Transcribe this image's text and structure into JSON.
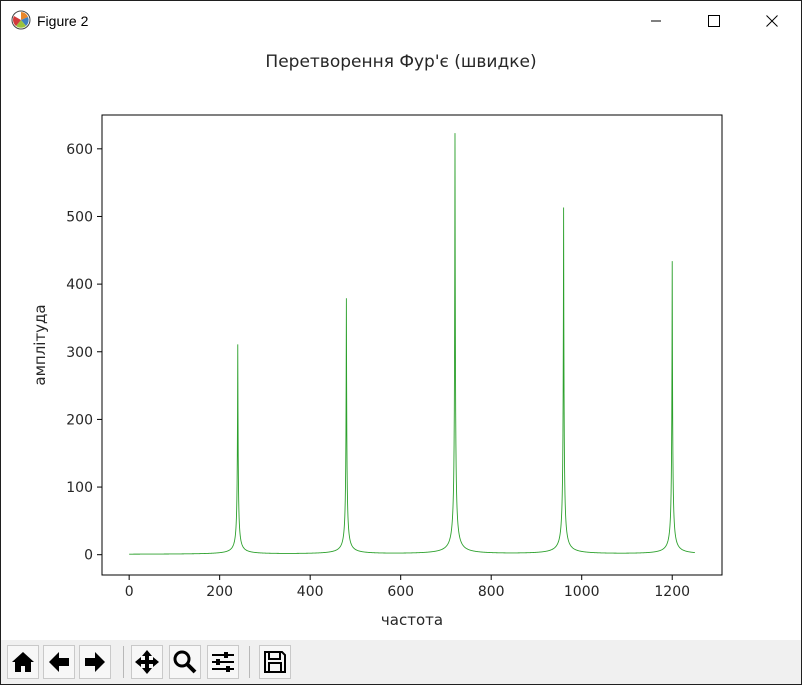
{
  "window": {
    "title": "Figure 2"
  },
  "chart_data": {
    "type": "line",
    "title": "Перетворення Фур'є (швидке)",
    "xlabel": "частота",
    "ylabel": "амплітуда",
    "xlim": [
      -60,
      1310
    ],
    "ylim": [
      -30,
      650
    ],
    "xticks": [
      0,
      200,
      400,
      600,
      800,
      1000,
      1200
    ],
    "yticks": [
      0,
      100,
      200,
      300,
      400,
      500,
      600
    ],
    "grid": false,
    "line_color": "#2ca02c",
    "series": [
      {
        "peaks": [
          {
            "x": 240,
            "y": 310
          },
          {
            "x": 480,
            "y": 378
          },
          {
            "x": 720,
            "y": 622
          },
          {
            "x": 960,
            "y": 512
          },
          {
            "x": 1200,
            "y": 433
          }
        ],
        "x_range": [
          0,
          1250
        ]
      }
    ]
  },
  "toolbar": {
    "buttons": [
      "home-icon",
      "back-icon",
      "forward-icon",
      "pan-icon",
      "zoom-icon",
      "configure-icon",
      "save-icon"
    ]
  }
}
